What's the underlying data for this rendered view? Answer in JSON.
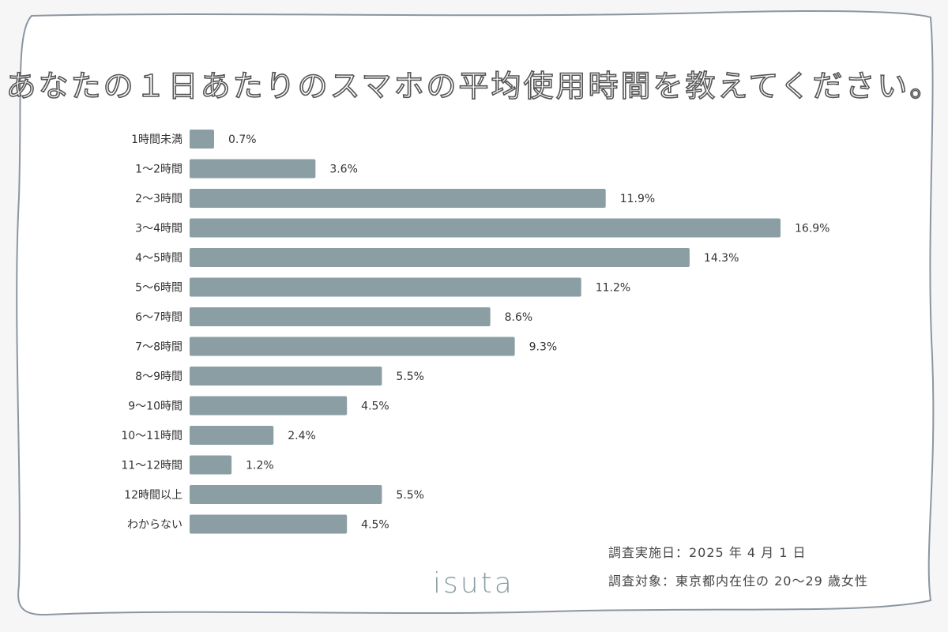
{
  "chart_data": {
    "type": "bar",
    "orientation": "horizontal",
    "title": "あなたの１日あたりのスマホの平均使用時間を教えてください。",
    "categories": [
      "1時間未満",
      "1〜2時間",
      "2〜3時間",
      "3〜4時間",
      "4〜5時間",
      "5〜6時間",
      "6〜7時間",
      "7〜8時間",
      "8〜9時間",
      "9〜10時間",
      "10〜11時間",
      "11〜12時間",
      "12時間以上",
      "わからない"
    ],
    "values": [
      0.7,
      3.6,
      11.9,
      16.9,
      14.3,
      11.2,
      8.6,
      9.3,
      5.5,
      4.5,
      2.4,
      1.2,
      5.5,
      4.5
    ],
    "value_labels": [
      "0.7%",
      "3.6%",
      "11.9%",
      "16.9%",
      "14.3%",
      "11.2%",
      "8.6%",
      "9.3%",
      "5.5%",
      "4.5%",
      "2.4%",
      "1.2%",
      "5.5%",
      "4.5%"
    ],
    "unit": "%",
    "xlim": [
      0,
      16.9
    ],
    "grid": false,
    "bar_color": "#8a9ea3"
  },
  "notes": {
    "survey_date": "調査実施日：2025 年 4 月 1 日",
    "survey_target": "調査対象：東京都内在住の 20〜29 歳女性"
  },
  "logo": "isuta"
}
